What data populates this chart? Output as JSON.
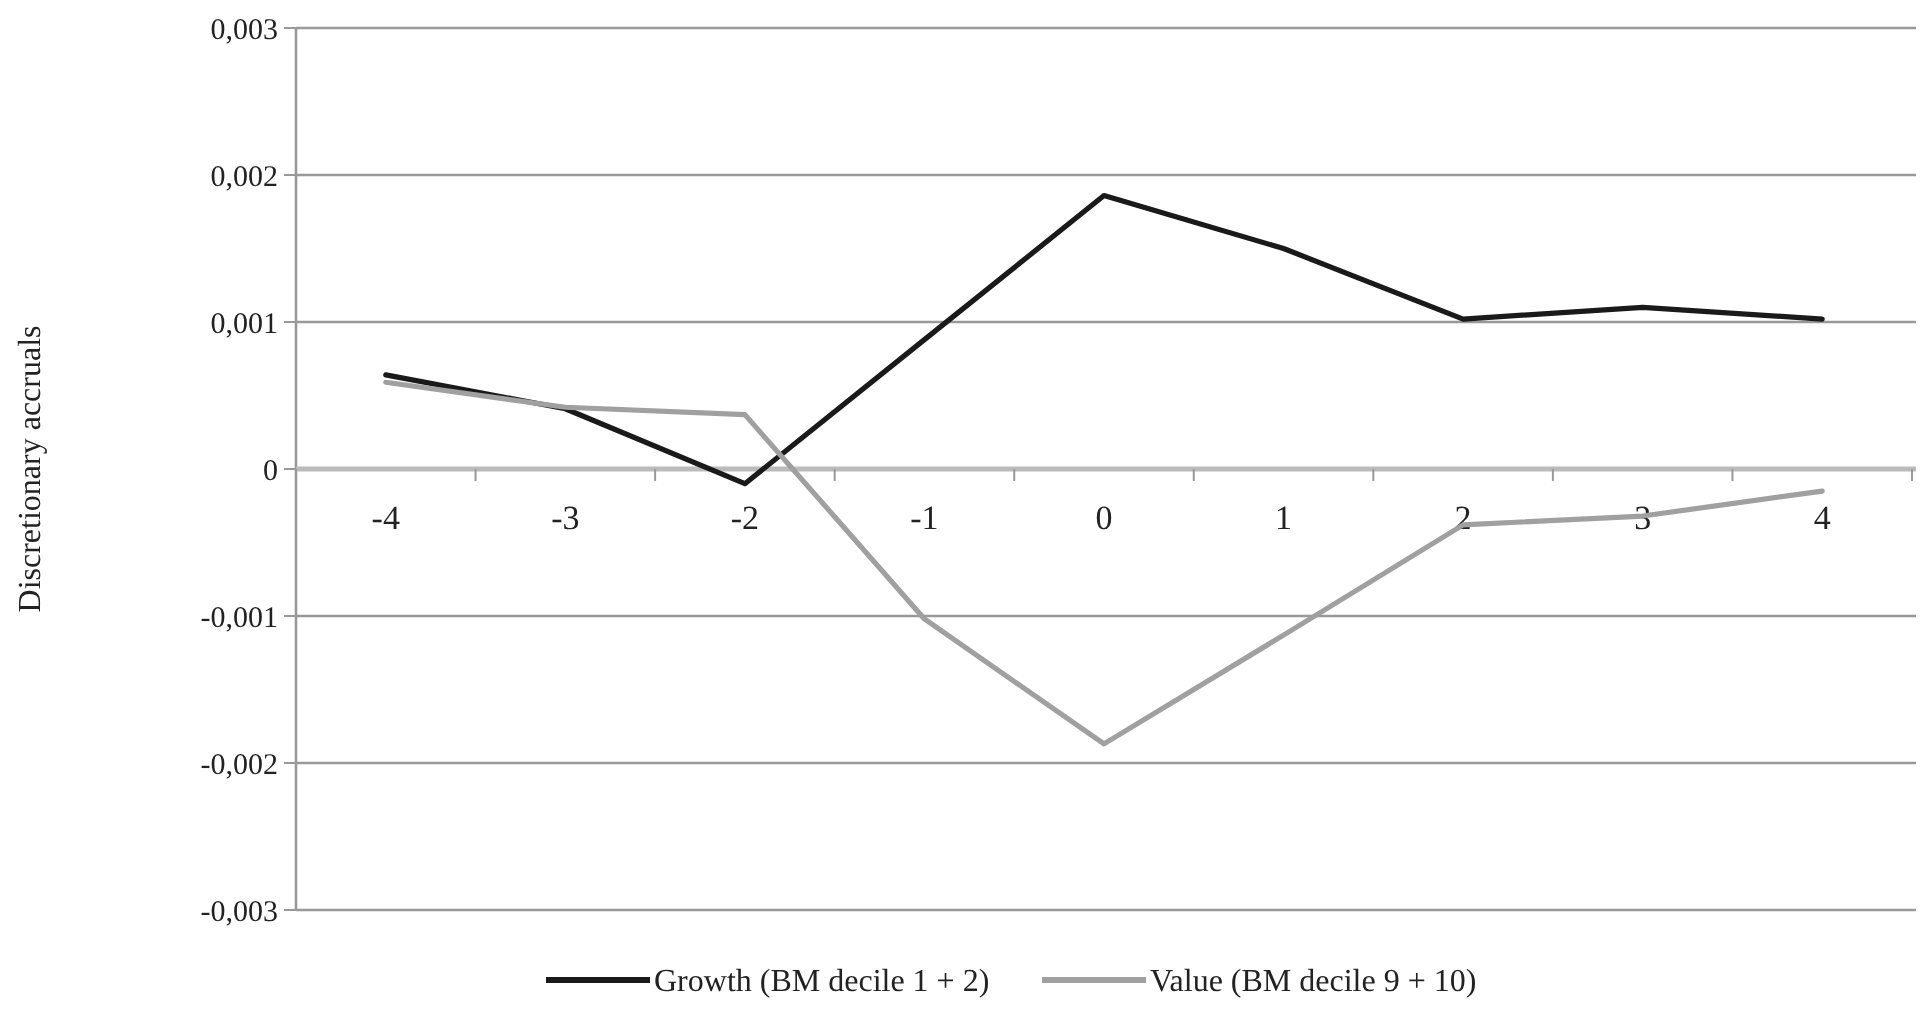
{
  "chart_data": {
    "type": "line",
    "ylabel": "Discretionary accruals",
    "categories": [
      "-4",
      "-3",
      "-2",
      "-1",
      "0",
      "1",
      "2",
      "3",
      "4"
    ],
    "series": [
      {
        "name": "Growth (BM decile 1 + 2)",
        "color": "#1a1a1a",
        "values": [
          0.00064,
          0.00041,
          -0.0001,
          0.00088,
          0.00186,
          0.0015,
          0.00102,
          0.0011,
          0.00102
        ]
      },
      {
        "name": "Value (BM decile 9 + 10)",
        "color": "#a0a0a0",
        "values": [
          0.00059,
          0.00042,
          0.00037,
          -0.00102,
          -0.00187,
          -0.00113,
          -0.00038,
          -0.00032,
          -0.00015
        ]
      }
    ],
    "ylim": [
      -0.003,
      0.003
    ],
    "yticks": [
      {
        "value": -0.003,
        "label": "-0,003"
      },
      {
        "value": -0.002,
        "label": "-0,002"
      },
      {
        "value": -0.001,
        "label": "-0,001"
      },
      0,
      {
        "value": 0.001,
        "label": "0,001"
      },
      {
        "value": 0.002,
        "label": "0,002"
      },
      {
        "value": 0.003,
        "label": "0,003"
      }
    ],
    "grid": "y",
    "legend": "bottom",
    "marker": "none",
    "line_style": "solid"
  }
}
